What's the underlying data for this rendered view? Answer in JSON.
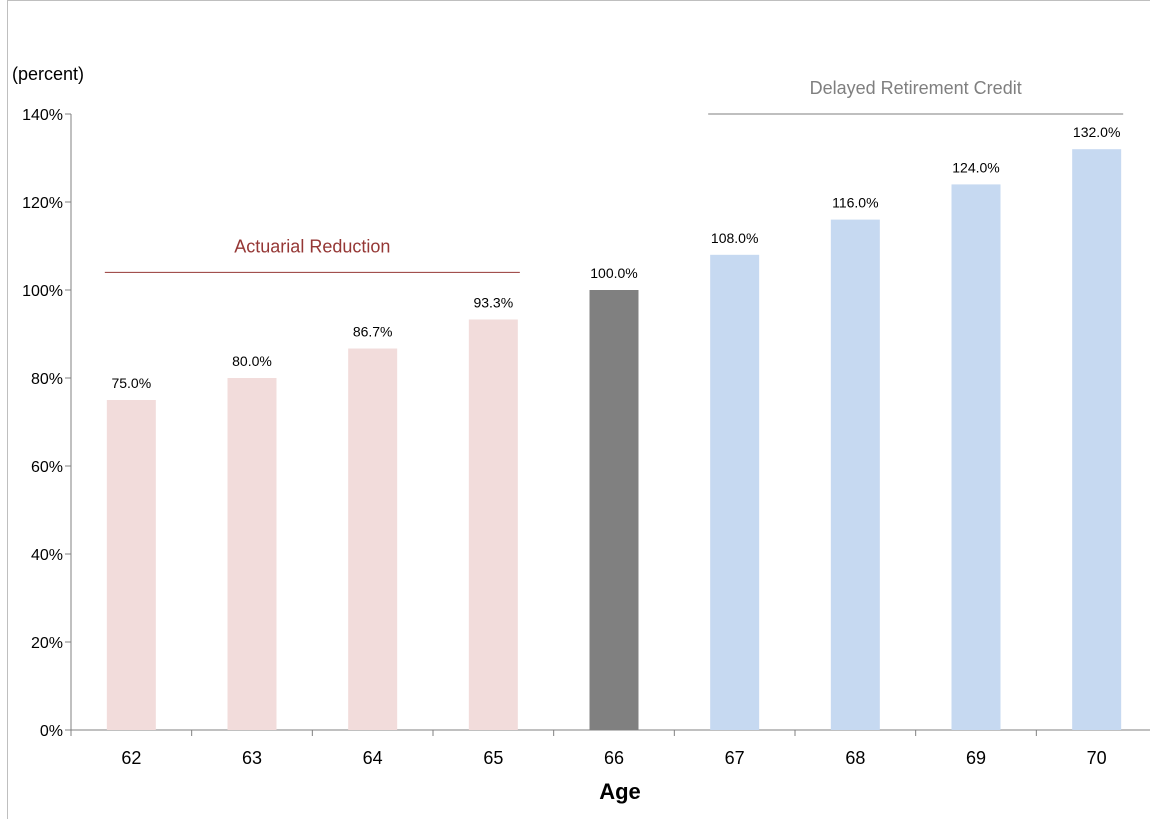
{
  "chart_data": {
    "type": "bar",
    "categories": [
      "62",
      "63",
      "64",
      "65",
      "66",
      "67",
      "68",
      "69",
      "70"
    ],
    "values": [
      75.0,
      80.0,
      86.7,
      93.3,
      100.0,
      108.0,
      116.0,
      124.0,
      132.0
    ],
    "data_labels": [
      "75.0%",
      "80.0%",
      "86.7%",
      "93.3%",
      "100.0%",
      "108.0%",
      "116.0%",
      "124.0%",
      "132.0%"
    ],
    "bar_colors": [
      "#f2dcdb",
      "#f2dcdb",
      "#f2dcdb",
      "#f2dcdb",
      "#808080",
      "#c6d9f1",
      "#c6d9f1",
      "#c6d9f1",
      "#c6d9f1"
    ],
    "title": "",
    "xlabel": "Age",
    "ylabel": "(percent)",
    "ylim": [
      0,
      140
    ],
    "yticks": [
      0,
      20,
      40,
      60,
      80,
      100,
      120,
      140
    ],
    "ytick_labels": [
      "0%",
      "20%",
      "40%",
      "60%",
      "80%",
      "100%",
      "120%",
      "140%"
    ],
    "grid": false,
    "legend": "none",
    "annotations": [
      {
        "text": "Actuarial Reduction",
        "color": "#953735",
        "span": [
          "62",
          "65"
        ],
        "level": 104
      },
      {
        "text": "Delayed Retirement Credit",
        "color": "#7f7f7f",
        "span": [
          "67",
          "70"
        ],
        "level": 140
      }
    ]
  }
}
